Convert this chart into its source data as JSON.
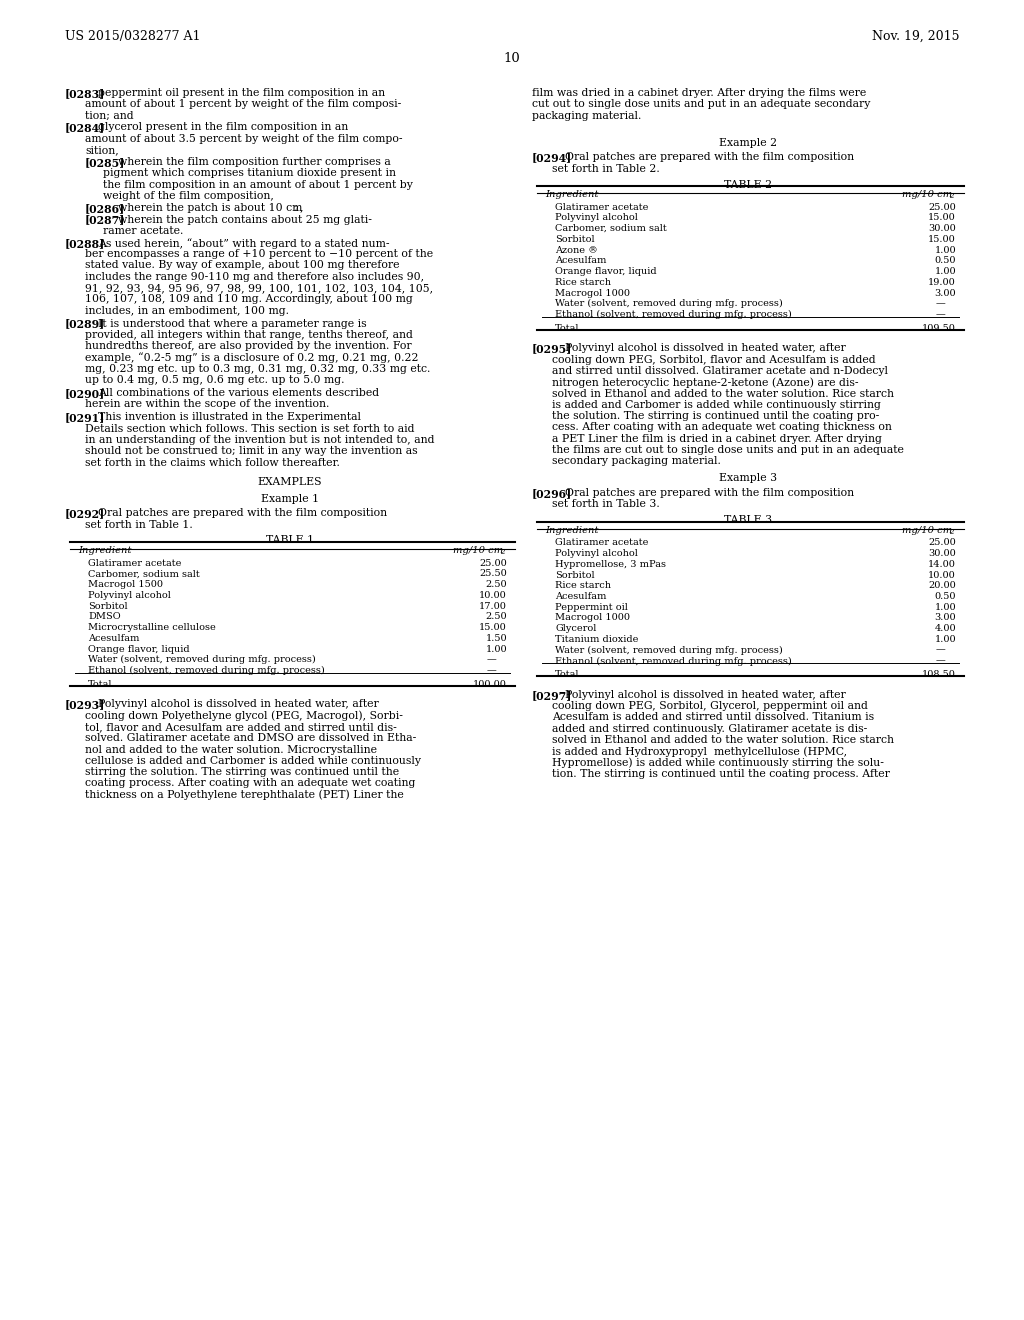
{
  "header_left": "US 2015/0328277 A1",
  "header_right": "Nov. 19, 2015",
  "page_number": "10",
  "background_color": "#ffffff",
  "table1": {
    "title": "TABLE 1",
    "col1": "Ingredient",
    "col2": "mg/10 cm",
    "rows": [
      [
        "Glatiramer acetate",
        "25.00"
      ],
      [
        "Carbomer, sodium salt",
        "25.50"
      ],
      [
        "Macrogol 1500",
        "2.50"
      ],
      [
        "Polyvinyl alcohol",
        "10.00"
      ],
      [
        "Sorbitol",
        "17.00"
      ],
      [
        "DMSO",
        "2.50"
      ],
      [
        "Microcrystalline cellulose",
        "15.00"
      ],
      [
        "Acesulfam",
        "1.50"
      ],
      [
        "Orange flavor, liquid",
        "1.00"
      ],
      [
        "Water (solvent, removed during mfg. process)",
        "—"
      ],
      [
        "Ethanol (solvent, removed during mfg. process)",
        "—"
      ]
    ],
    "total_label": "Total",
    "total_value": "100.00"
  },
  "table2": {
    "title": "TABLE 2",
    "col1": "Ingredient",
    "col2": "mg/10 cm",
    "rows": [
      [
        "Glatiramer acetate",
        "25.00"
      ],
      [
        "Polyvinyl alcohol",
        "15.00"
      ],
      [
        "Carbomer, sodium salt",
        "30.00"
      ],
      [
        "Sorbitol",
        "15.00"
      ],
      [
        "Azone ®",
        "1.00"
      ],
      [
        "Acesulfam",
        "0.50"
      ],
      [
        "Orange flavor, liquid",
        "1.00"
      ],
      [
        "Rice starch",
        "19.00"
      ],
      [
        "Macrogol 1000",
        "3.00"
      ],
      [
        "Water (solvent, removed during mfg. process)",
        "—"
      ],
      [
        "Ethanol (solvent, removed during mfg. process)",
        "—"
      ]
    ],
    "total_label": "Total",
    "total_value": "109.50"
  },
  "table3": {
    "title": "TABLE 3",
    "col1": "Ingredient",
    "col2": "mg/10 cm",
    "rows": [
      [
        "Glatiramer acetate",
        "25.00"
      ],
      [
        "Polyvinyl alcohol",
        "30.00"
      ],
      [
        "Hypromellose, 3 mPas",
        "14.00"
      ],
      [
        "Sorbitol",
        "10.00"
      ],
      [
        "Rice starch",
        "20.00"
      ],
      [
        "Acesulfam",
        "0.50"
      ],
      [
        "Peppermint oil",
        "1.00"
      ],
      [
        "Macrogol 1000",
        "3.00"
      ],
      [
        "Glycerol",
        "4.00"
      ],
      [
        "Titanium dioxide",
        "1.00"
      ],
      [
        "Water (solvent, removed during mfg. process)",
        "—"
      ],
      [
        "Ethanol (solvent, removed during mfg. process)",
        "—"
      ]
    ],
    "total_label": "Total",
    "total_value": "108.50"
  },
  "left_lines": {
    "p283_l1": "peppermint oil present in the film composition in an",
    "p283_l2": "amount of about 1 percent by weight of the film composi-",
    "p283_l3": "tion; and",
    "p284_l1": "glycerol present in the film composition in an",
    "p284_l2": "amount of about 3.5 percent by weight of the film compo-",
    "p284_l3": "sition,",
    "p285_l1": "wherein the film composition further comprises a",
    "p285_l2": "pigment which comprises titanium dioxide present in",
    "p285_l3": "the film composition in an amount of about 1 percent by",
    "p285_l4": "weight of the film composition,",
    "p286_l1": "wherein the patch is about 10 cm",
    "p287_l1": "wherein the patch contains about 25 mg glati-",
    "p287_l2": "ramer acetate.",
    "p288_l1": "As used herein, “about” with regard to a stated num-",
    "p288_l2": "ber encompasses a range of +10 percent to −10 percent of the",
    "p288_l3": "stated value. By way of example, about 100 mg therefore",
    "p288_l4": "includes the range 90-110 mg and therefore also includes 90,",
    "p288_l5": "91, 92, 93, 94, 95 96, 97, 98, 99, 100, 101, 102, 103, 104, 105,",
    "p288_l6": "106, 107, 108, 109 and 110 mg. Accordingly, about 100 mg",
    "p288_l7": "includes, in an embodiment, 100 mg.",
    "p289_l1": "It is understood that where a parameter range is",
    "p289_l2": "provided, all integers within that range, tenths thereof, and",
    "p289_l3": "hundredths thereof, are also provided by the invention. For",
    "p289_l4": "example, “0.2-5 mg” is a disclosure of 0.2 mg, 0.21 mg, 0.22",
    "p289_l5": "mg, 0.23 mg etc. up to 0.3 mg, 0.31 mg, 0.32 mg, 0.33 mg etc.",
    "p289_l6": "up to 0.4 mg, 0.5 mg, 0.6 mg etc. up to 5.0 mg.",
    "p290_l1": "All combinations of the various elements described",
    "p290_l2": "herein are within the scope of the invention.",
    "p291_l1": "This invention is illustrated in the Experimental",
    "p291_l2": "Details section which follows. This section is set forth to aid",
    "p291_l3": "in an understanding of the invention but is not intended to, and",
    "p291_l4": "should not be construed to; limit in any way the invention as",
    "p291_l5": "set forth in the claims which follow thereafter.",
    "examples_heading": "EXAMPLES",
    "example1_heading": "Example 1",
    "p292_l1": "Oral patches are prepared with the film composition",
    "p292_l2": "set forth in Table 1.",
    "table1_title": "TABLE 1",
    "p293_l1": "Polyvinyl alcohol is dissolved in heated water, after",
    "p293_l2": "cooling down Polyethelyne glycol (PEG, Macrogol), Sorbi-",
    "p293_l3": "tol, flavor and Acesulfam are added and stirred until dis-",
    "p293_l4": "solved. Glatiramer acetate and DMSO are dissolved in Etha-",
    "p293_l5": "nol and added to the water solution. Microcrystalline",
    "p293_l6": "cellulose is added and Carbomer is added while continuously",
    "p293_l7": "stirring the solution. The stirring was continued until the",
    "p293_l8": "coating process. After coating with an adequate wet coating",
    "p293_l9": "thickness on a Polyethylene terephthalate (PET) Liner the"
  },
  "right_lines": {
    "p293_cont_l1": "film was dried in a cabinet dryer. After drying the films were",
    "p293_cont_l2": "cut out to single dose units and put in an adequate secondary",
    "p293_cont_l3": "packaging material.",
    "example2_heading": "Example 2",
    "p294_l1": "Oral patches are prepared with the film composition",
    "p294_l2": "set forth in Table 2.",
    "table2_title": "TABLE 2",
    "p295_l1": "Polyvinyl alcohol is dissolved in heated water, after",
    "p295_l2": "cooling down PEG, Sorbitol, flavor and Acesulfam is added",
    "p295_l3": "and stirred until dissolved. Glatiramer acetate and n-Dodecyl",
    "p295_l4": "nitrogen heterocyclic heptane-2-ketone (Azone) are dis-",
    "p295_l5": "solved in Ethanol and added to the water solution. Rice starch",
    "p295_l6": "is added and Carbomer is added while continuously stirring",
    "p295_l7": "the solution. The stirring is continued until the coating pro-",
    "p295_l8": "cess. After coating with an adequate wet coating thickness on",
    "p295_l9": "a PET Liner the film is dried in a cabinet dryer. After drying",
    "p295_l10": "the films are cut out to single dose units and put in an adequate",
    "p295_l11": "secondary packaging material.",
    "example3_heading": "Example 3",
    "p296_l1": "Oral patches are prepared with the film composition",
    "p296_l2": "set forth in Table 3.",
    "table3_title": "TABLE 3",
    "p297_l1": "Polyvinyl alcohol is dissolved in heated water, after",
    "p297_l2": "cooling down PEG, Sorbitol, Glycerol, peppermint oil and",
    "p297_l3": "Acesulfam is added and stirred until dissolved. Titanium is",
    "p297_l4": "added and stirred continuously. Glatiramer acetate is dis-",
    "p297_l5": "solved in Ethanol and added to the water solution. Rice starch",
    "p297_l6": "is added and Hydroxypropyl  methylcellulose (HPMC,",
    "p297_l7": "Hypromellose) is added while continuously stirring the solu-",
    "p297_l8": "tion. The stirring is continued until the coating process. After"
  }
}
